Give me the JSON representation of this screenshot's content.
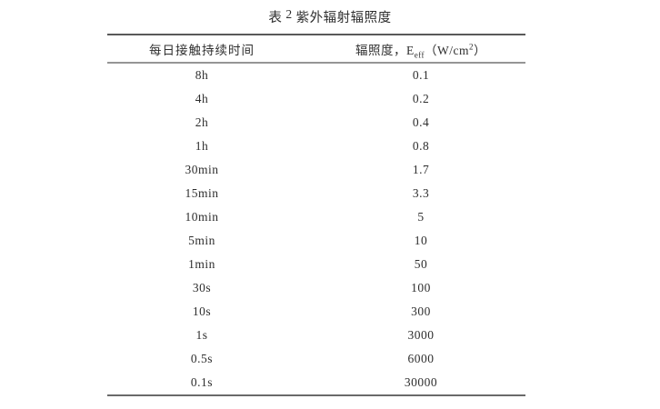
{
  "title": {
    "prefix": "表",
    "num": "2",
    "rest": "紫外辐射辐照度"
  },
  "table": {
    "header": {
      "col1": "每日接触持续时间",
      "col2_prefix": "辐照度，E",
      "col2_sub": "eff",
      "col2_mid": "（W/cm",
      "col2_sup": "2",
      "col2_suffix": "）"
    },
    "rows": [
      {
        "duration": "8h",
        "irradiance": "0.1"
      },
      {
        "duration": "4h",
        "irradiance": "0.2"
      },
      {
        "duration": "2h",
        "irradiance": "0.4"
      },
      {
        "duration": "1h",
        "irradiance": "0.8"
      },
      {
        "duration": "30min",
        "irradiance": "1.7"
      },
      {
        "duration": "15min",
        "irradiance": "3.3"
      },
      {
        "duration": "10min",
        "irradiance": "5"
      },
      {
        "duration": "5min",
        "irradiance": "10"
      },
      {
        "duration": "1min",
        "irradiance": "50"
      },
      {
        "duration": "30s",
        "irradiance": "100"
      },
      {
        "duration": "10s",
        "irradiance": "300"
      },
      {
        "duration": "1s",
        "irradiance": "3000"
      },
      {
        "duration": "0.5s",
        "irradiance": "6000"
      },
      {
        "duration": "0.1s",
        "irradiance": "30000"
      }
    ]
  },
  "colors": {
    "text": "#2e2e2e",
    "rule_dark": "#595959",
    "rule_gray": "#959595",
    "background": "#ffffff"
  }
}
